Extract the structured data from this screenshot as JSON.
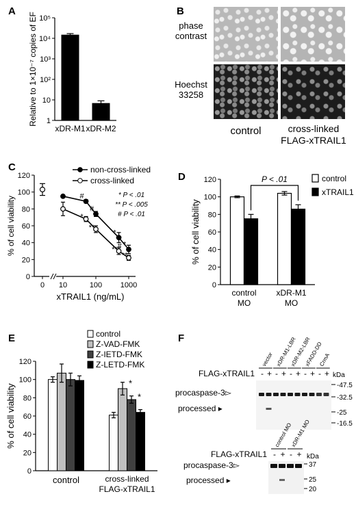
{
  "panels": {
    "A": {
      "letter": "A",
      "chart_data": {
        "type": "bar",
        "categories": [
          "xDR-M1",
          "xDR-M2"
        ],
        "values": [
          15000,
          7
        ],
        "errors": [
          2000,
          2
        ],
        "ylabel": "Relative to 1×10⁻⁷ copies of EF",
        "yscale": "log",
        "ylim": [
          1,
          100000
        ],
        "yticks": [
          "1",
          "10",
          "10²",
          "10³",
          "10⁴",
          "10⁵"
        ]
      }
    },
    "B": {
      "letter": "B",
      "row_labels": [
        "phase contrast",
        "Hoechst 33258"
      ],
      "col_labels": [
        "control",
        "cross-linked FLAG-xTRAIL1"
      ]
    },
    "C": {
      "letter": "C",
      "chart_data": {
        "type": "line",
        "xlabel": "xTRAIL1 (ng/mL)",
        "ylabel": "% of cell viability",
        "ylim": [
          0,
          120
        ],
        "yticks": [
          0,
          20,
          40,
          60,
          80,
          100,
          120
        ],
        "xscale": "log",
        "xticks": [
          "0",
          "10",
          "100",
          "1000"
        ],
        "zero_point": {
          "value": 103,
          "error": 7
        },
        "x": [
          10,
          50,
          100,
          500,
          1000
        ],
        "series": [
          {
            "name": "non-cross-linked",
            "marker": "filled",
            "values": [
              95,
              89,
              74,
              46,
              32
            ],
            "errors": [
              1,
              2,
              3,
              6,
              5
            ]
          },
          {
            "name": "cross-linked",
            "marker": "open",
            "values": [
              80,
              68,
              56,
              30,
              22
            ],
            "errors": [
              8,
              3,
              4,
              4,
              3
            ]
          }
        ],
        "legend_position": "top-right",
        "significance_legend": [
          "* P < .01",
          "** P < .005",
          "# P < .01"
        ],
        "annotations": [
          {
            "x": 50,
            "y": 89,
            "text": "#"
          },
          {
            "x": 50,
            "y": 65,
            "text": "*"
          },
          {
            "x": 100,
            "y": 74,
            "text": "#"
          },
          {
            "x": 100,
            "y": 52,
            "text": "**"
          },
          {
            "x": 500,
            "y": 46,
            "text": "*"
          },
          {
            "x": 500,
            "y": 26,
            "text": "**"
          },
          {
            "x": 1000,
            "y": 32,
            "text": "*"
          },
          {
            "x": 1000,
            "y": 19,
            "text": "**"
          },
          {
            "x": 700,
            "y": 30,
            "text": "#"
          }
        ]
      }
    },
    "D": {
      "letter": "D",
      "chart_data": {
        "type": "bar",
        "categories": [
          "control MO",
          "xDR-M1 MO"
        ],
        "series": [
          {
            "name": "control",
            "color": "#ffffff",
            "values": [
              100,
              104
            ],
            "errors": [
              1,
              2
            ]
          },
          {
            "name": "xTRAIL1",
            "color": "#000000",
            "values": [
              75,
              86
            ],
            "errors": [
              5,
              5
            ]
          }
        ],
        "ylabel": "% of cell viability",
        "ylim": [
          0,
          120
        ],
        "yticks": [
          0,
          20,
          40,
          60,
          80,
          100,
          120
        ],
        "bracket": "P < .01",
        "legend_position": "top-right"
      }
    },
    "E": {
      "letter": "E",
      "chart_data": {
        "type": "bar",
        "categories": [
          "control",
          "cross-linked FLAG-xTRAIL1"
        ],
        "series": [
          {
            "name": "control",
            "color": "#ffffff",
            "values": [
              100,
              61
            ],
            "errors": [
              3,
              3
            ]
          },
          {
            "name": "Z-VAD-FMK",
            "color": "#c0c0c0",
            "values": [
              107,
              90
            ],
            "errors": [
              10,
              7
            ]
          },
          {
            "name": "Z-IETD-FMK",
            "color": "#404040",
            "values": [
              100,
              78
            ],
            "errors": [
              7,
              4
            ]
          },
          {
            "name": "Z-LETD-FMK",
            "color": "#000000",
            "values": [
              99,
              64
            ],
            "errors": [
              5,
              3
            ]
          }
        ],
        "stars": [
          {
            "category": 1,
            "series": 1,
            "text": "*"
          },
          {
            "category": 1,
            "series": 2,
            "text": "*"
          }
        ],
        "ylabel": "% of cell viability",
        "ylim": [
          0,
          120
        ],
        "yticks": [
          0,
          20,
          40,
          60,
          80,
          100,
          120
        ],
        "legend_position": "top-right"
      }
    },
    "F": {
      "letter": "F",
      "blot1": {
        "lanes": [
          "vector",
          "xDR-M1-LBR",
          "xDR-M2-LBR",
          "xFADD-DD",
          "CrmA"
        ],
        "row_label": "FLAG-xTRAIL1",
        "signs": [
          "-",
          "+",
          "-",
          "+",
          "-",
          "+",
          "-",
          "+",
          "-",
          "+"
        ],
        "kda": "kDa",
        "markers": [
          "47.5",
          "32.5",
          "25",
          "16.5"
        ],
        "bands": [
          "procaspase-3",
          "processed"
        ]
      },
      "blot2": {
        "lanes": [
          "control MO",
          "xDR-M1 MO"
        ],
        "row_label": "FLAG-xTRAIL1",
        "signs": [
          "-",
          "+",
          "-",
          "+"
        ],
        "kda": "kDa",
        "markers": [
          "37",
          "25",
          "20"
        ],
        "bands": [
          "procaspase-3",
          "processed"
        ]
      }
    }
  }
}
